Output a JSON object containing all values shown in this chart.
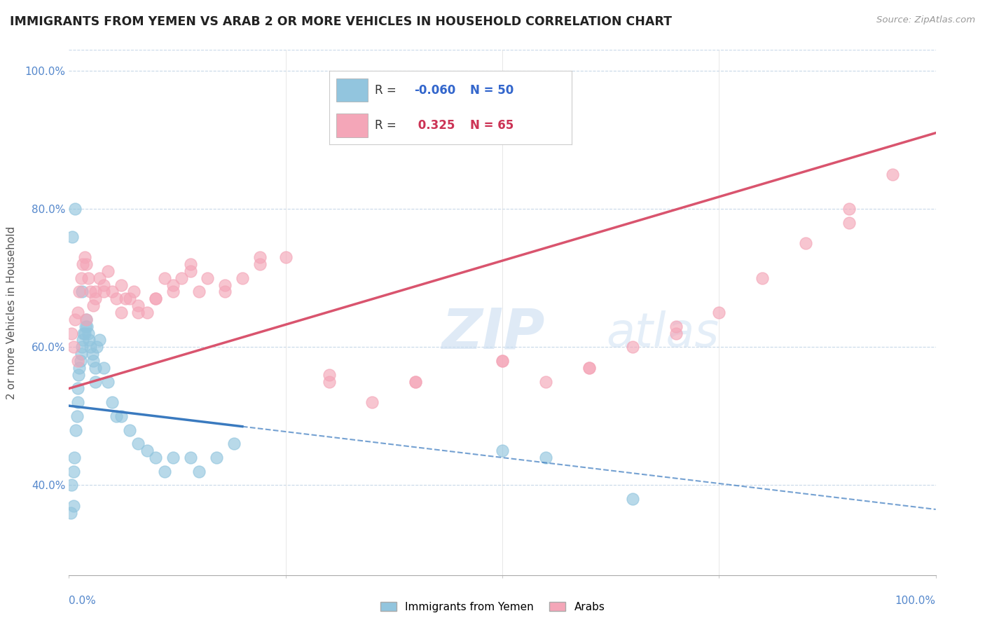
{
  "title": "IMMIGRANTS FROM YEMEN VS ARAB 2 OR MORE VEHICLES IN HOUSEHOLD CORRELATION CHART",
  "source": "Source: ZipAtlas.com",
  "ylabel": "2 or more Vehicles in Household",
  "legend_label1": "Immigrants from Yemen",
  "legend_label2": "Arabs",
  "R1": -0.06,
  "N1": 50,
  "R2": 0.325,
  "N2": 65,
  "blue_color": "#92c5de",
  "pink_color": "#f4a6b8",
  "blue_line_color": "#3a7abf",
  "pink_line_color": "#d9546e",
  "watermark_zip": "ZIP",
  "watermark_atlas": "atlas",
  "xlim": [
    0,
    100
  ],
  "ylim": [
    27,
    103
  ],
  "yticks": [
    40,
    60,
    80,
    100
  ],
  "blue_line_start_x": 0,
  "blue_line_start_y": 51.5,
  "blue_line_end_x": 100,
  "blue_line_end_y": 36.5,
  "blue_solid_end_x": 20,
  "pink_line_start_x": 0,
  "pink_line_start_y": 54,
  "pink_line_end_x": 100,
  "pink_line_end_y": 91,
  "blue_scatter_x": [
    0.2,
    0.3,
    0.5,
    0.5,
    0.6,
    0.8,
    0.9,
    1.0,
    1.0,
    1.1,
    1.2,
    1.3,
    1.4,
    1.5,
    1.6,
    1.7,
    1.8,
    1.9,
    2.0,
    2.1,
    2.2,
    2.3,
    2.5,
    2.7,
    2.8,
    3.0,
    3.2,
    3.5,
    4.0,
    4.5,
    5.0,
    5.5,
    6.0,
    7.0,
    8.0,
    9.0,
    10.0,
    11.0,
    12.0,
    14.0,
    15.0,
    17.0,
    19.0,
    50.0,
    55.0,
    65.0,
    0.4,
    0.7,
    1.5,
    3.0
  ],
  "blue_scatter_y": [
    36,
    40,
    37,
    42,
    44,
    48,
    50,
    52,
    54,
    56,
    57,
    58,
    59,
    60,
    61,
    62,
    62,
    63,
    64,
    63,
    62,
    61,
    60,
    59,
    58,
    57,
    60,
    61,
    57,
    55,
    52,
    50,
    50,
    48,
    46,
    45,
    44,
    42,
    44,
    44,
    42,
    44,
    46,
    45,
    44,
    38,
    76,
    80,
    68,
    55
  ],
  "pink_scatter_x": [
    0.3,
    0.5,
    0.7,
    1.0,
    1.2,
    1.4,
    1.6,
    1.8,
    2.0,
    2.2,
    2.5,
    2.8,
    3.0,
    3.5,
    4.0,
    4.5,
    5.0,
    5.5,
    6.0,
    6.5,
    7.0,
    7.5,
    8.0,
    9.0,
    10.0,
    11.0,
    12.0,
    13.0,
    14.0,
    15.0,
    16.0,
    18.0,
    20.0,
    22.0,
    25.0,
    30.0,
    35.0,
    40.0,
    50.0,
    55.0,
    60.0,
    65.0,
    70.0,
    75.0,
    80.0,
    85.0,
    90.0,
    95.0,
    1.0,
    2.0,
    3.0,
    4.0,
    6.0,
    8.0,
    10.0,
    12.0,
    14.0,
    18.0,
    22.0,
    30.0,
    40.0,
    50.0,
    60.0,
    70.0,
    90.0
  ],
  "pink_scatter_y": [
    62,
    60,
    64,
    65,
    68,
    70,
    72,
    73,
    72,
    70,
    68,
    66,
    68,
    70,
    69,
    71,
    68,
    67,
    65,
    67,
    67,
    68,
    65,
    65,
    67,
    70,
    68,
    70,
    72,
    68,
    70,
    68,
    70,
    72,
    73,
    55,
    52,
    55,
    58,
    55,
    57,
    60,
    62,
    65,
    70,
    75,
    78,
    85,
    58,
    64,
    67,
    68,
    69,
    66,
    67,
    69,
    71,
    69,
    73,
    56,
    55,
    58,
    57,
    63,
    80
  ]
}
